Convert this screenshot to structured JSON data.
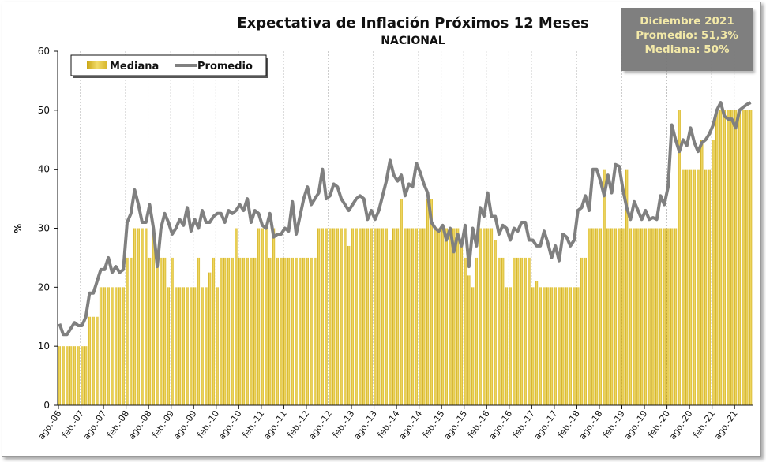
{
  "chart_data": {
    "type": "bar+line",
    "title": "Expectativa de Inflación Próximos 12 Meses",
    "subtitle": "NACIONAL",
    "ylabel": "%",
    "ylim": [
      0,
      60
    ],
    "yticks": [
      0,
      10,
      20,
      30,
      40,
      50,
      60
    ],
    "grid": "vertical dashed every 6 months",
    "legend": {
      "position": "top-left",
      "entries": [
        "Mediana",
        "Promedio"
      ]
    },
    "x_start": "ago-06",
    "x_end": "dic-21",
    "xtick_labels": [
      "ago.-06",
      "feb.-07",
      "ago.-07",
      "feb.-08",
      "ago.-08",
      "feb.-09",
      "ago.-09",
      "feb.-10",
      "ago.-10",
      "feb.-11",
      "ago.-11",
      "feb.-12",
      "ago.-12",
      "feb.-13",
      "ago.-13",
      "feb.-14",
      "ago.-14",
      "feb.-15",
      "ago.-15",
      "feb.-16",
      "ago.-16",
      "feb.-17",
      "ago.-17",
      "feb.-18",
      "ago.-18",
      "feb.-19",
      "ago.-19",
      "feb.-20",
      "ago.-20",
      "feb.-21",
      "ago.-21"
    ],
    "series": [
      {
        "name": "Mediana",
        "kind": "bar",
        "color": "#d9b826",
        "values": [
          10,
          10,
          10,
          10,
          10,
          10,
          10,
          10,
          15,
          15,
          15,
          20,
          20,
          20,
          20,
          20,
          20,
          20,
          25,
          25,
          30,
          30,
          30,
          30,
          25,
          30,
          25,
          25,
          25,
          20,
          25,
          20,
          20,
          20,
          20,
          20,
          20,
          25,
          20,
          20,
          22.5,
          25,
          20,
          25,
          25,
          25,
          25,
          30,
          25,
          25,
          25,
          25,
          25,
          30,
          30,
          30,
          25,
          30,
          25,
          25,
          25,
          25,
          25,
          25,
          25,
          25,
          25,
          25,
          25,
          30,
          30,
          30,
          30,
          30,
          30,
          30,
          30,
          27,
          30,
          30,
          30,
          30,
          30,
          30,
          30,
          30,
          30,
          30,
          28,
          30,
          30,
          35,
          30,
          30,
          30,
          30,
          30,
          30,
          35,
          35,
          30,
          30,
          30,
          30,
          30,
          30,
          30,
          28,
          25,
          22,
          20,
          25,
          30,
          30,
          30,
          30,
          28,
          25,
          25,
          20,
          20,
          25,
          25,
          25,
          25,
          25,
          20,
          21,
          20,
          20,
          20,
          20,
          20,
          20,
          20,
          20,
          20,
          20,
          20,
          25,
          25,
          30,
          30,
          30,
          30,
          40,
          30,
          30,
          30,
          30,
          30,
          40,
          30,
          30,
          30,
          30,
          30,
          30,
          30,
          30,
          30,
          30,
          30,
          30,
          30,
          50,
          40,
          40,
          40,
          40,
          40,
          45,
          40,
          40,
          45,
          50,
          50,
          50,
          50,
          50,
          50,
          50,
          50,
          50,
          50
        ]
      },
      {
        "name": "Promedio",
        "kind": "line",
        "color": "#808080",
        "values": [
          13.8,
          12,
          12,
          13,
          14,
          13.5,
          13.5,
          15,
          19,
          19,
          21,
          23,
          23,
          25,
          22.5,
          23.5,
          22.5,
          23,
          31,
          32.5,
          36.5,
          34,
          31,
          31,
          34,
          30,
          23.5,
          30,
          32.5,
          31,
          29,
          30,
          31.5,
          30.5,
          33.5,
          29.5,
          31.5,
          30,
          33,
          31,
          31,
          32,
          32.5,
          32.5,
          31,
          33,
          32.5,
          33,
          34,
          33,
          35,
          31,
          33,
          32.5,
          30.5,
          30,
          32.5,
          28.5,
          29,
          29,
          30,
          29.5,
          34.5,
          29,
          32,
          35,
          37,
          34,
          35,
          36,
          40,
          35,
          35.5,
          37.5,
          37,
          35,
          34,
          33,
          34,
          35,
          35.5,
          35,
          31.5,
          33,
          31.5,
          33,
          35.5,
          38,
          41.5,
          39,
          38,
          39,
          35.5,
          37.5,
          37,
          41,
          39.5,
          37.5,
          36,
          31,
          30,
          29.5,
          30.5,
          28,
          30,
          26,
          29,
          27,
          30.5,
          23.5,
          30,
          27,
          33.5,
          32,
          36,
          32,
          32,
          29,
          30.5,
          30,
          28,
          30,
          29.5,
          31,
          31,
          28,
          28,
          27,
          27,
          29.5,
          27.5,
          25,
          27,
          24.5,
          29,
          28.5,
          27,
          28,
          33,
          33.5,
          35.5,
          33,
          40,
          40,
          38,
          35.5,
          39,
          36,
          40.8,
          40.5,
          36.5,
          33.5,
          31.5,
          34.5,
          33,
          31.5,
          33,
          31.5,
          31.8,
          31.5,
          35.5,
          34,
          37,
          47.5,
          45,
          43,
          45,
          44,
          47,
          44.5,
          43,
          44.5,
          45,
          46,
          47.5,
          50,
          51.3,
          49,
          48.5,
          48.5,
          47,
          50,
          50.5,
          51,
          51.3
        ]
      }
    ]
  },
  "info_box": {
    "line1": "Diciembre 2021",
    "line2": "Promedio: 51,3%",
    "line3": "Mediana: 50%"
  }
}
